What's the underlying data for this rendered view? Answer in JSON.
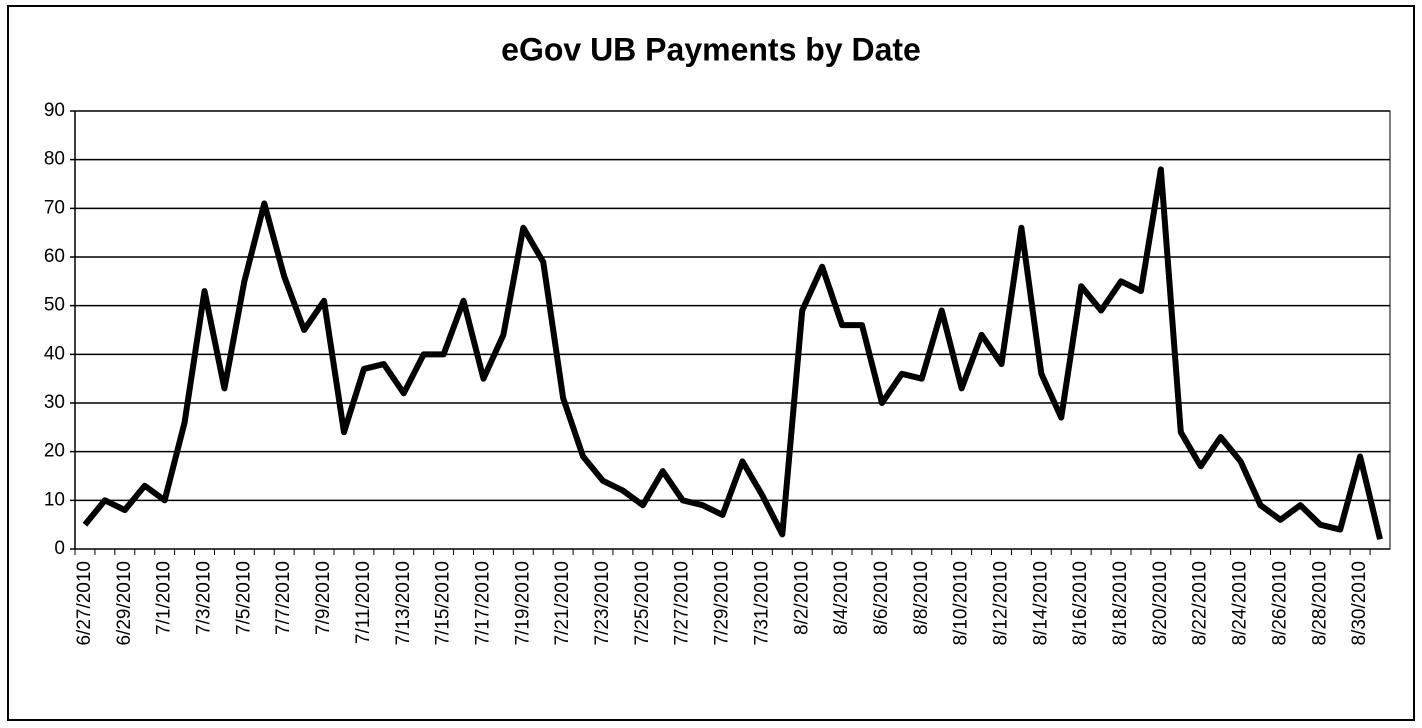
{
  "chart_data": {
    "type": "line",
    "title": "eGov UB Payments by Date",
    "categories": [
      "6/27/2010",
      null,
      "6/29/2010",
      null,
      "7/1/2010",
      null,
      "7/3/2010",
      null,
      "7/5/2010",
      null,
      "7/7/2010",
      null,
      "7/9/2010",
      null,
      "7/11/2010",
      null,
      "7/13/2010",
      null,
      "7/15/2010",
      null,
      "7/17/2010",
      null,
      "7/19/2010",
      null,
      "7/21/2010",
      null,
      "7/23/2010",
      null,
      "7/25/2010",
      null,
      "7/27/2010",
      null,
      "7/29/2010",
      null,
      "7/31/2010",
      null,
      "8/2/2010",
      null,
      "8/4/2010",
      null,
      "8/6/2010",
      null,
      "8/8/2010",
      null,
      "8/10/2010",
      null,
      "8/12/2010",
      null,
      "8/14/2010",
      null,
      "8/16/2010",
      null,
      "8/18/2010",
      null,
      "8/20/2010",
      null,
      "8/22/2010",
      null,
      "8/24/2010",
      null,
      "8/26/2010",
      null,
      "8/28/2010",
      null,
      "8/30/2010",
      null
    ],
    "values": [
      5,
      10,
      8,
      13,
      10,
      26,
      53,
      33,
      55,
      71,
      56,
      45,
      51,
      24,
      37,
      38,
      32,
      40,
      40,
      51,
      35,
      44,
      66,
      59,
      31,
      19,
      14,
      12,
      9,
      16,
      10,
      9,
      7,
      18,
      11,
      3,
      49,
      58,
      46,
      46,
      30,
      36,
      35,
      49,
      33,
      44,
      38,
      66,
      36,
      27,
      54,
      49,
      55,
      53,
      78,
      24,
      17,
      23,
      18,
      9,
      6,
      9,
      5,
      4,
      19,
      2
    ],
    "color": "#000000",
    "ylim": [
      0,
      90
    ],
    "yticks": [
      0,
      10,
      20,
      30,
      40,
      50,
      60,
      70,
      80,
      90
    ],
    "grid": true
  }
}
